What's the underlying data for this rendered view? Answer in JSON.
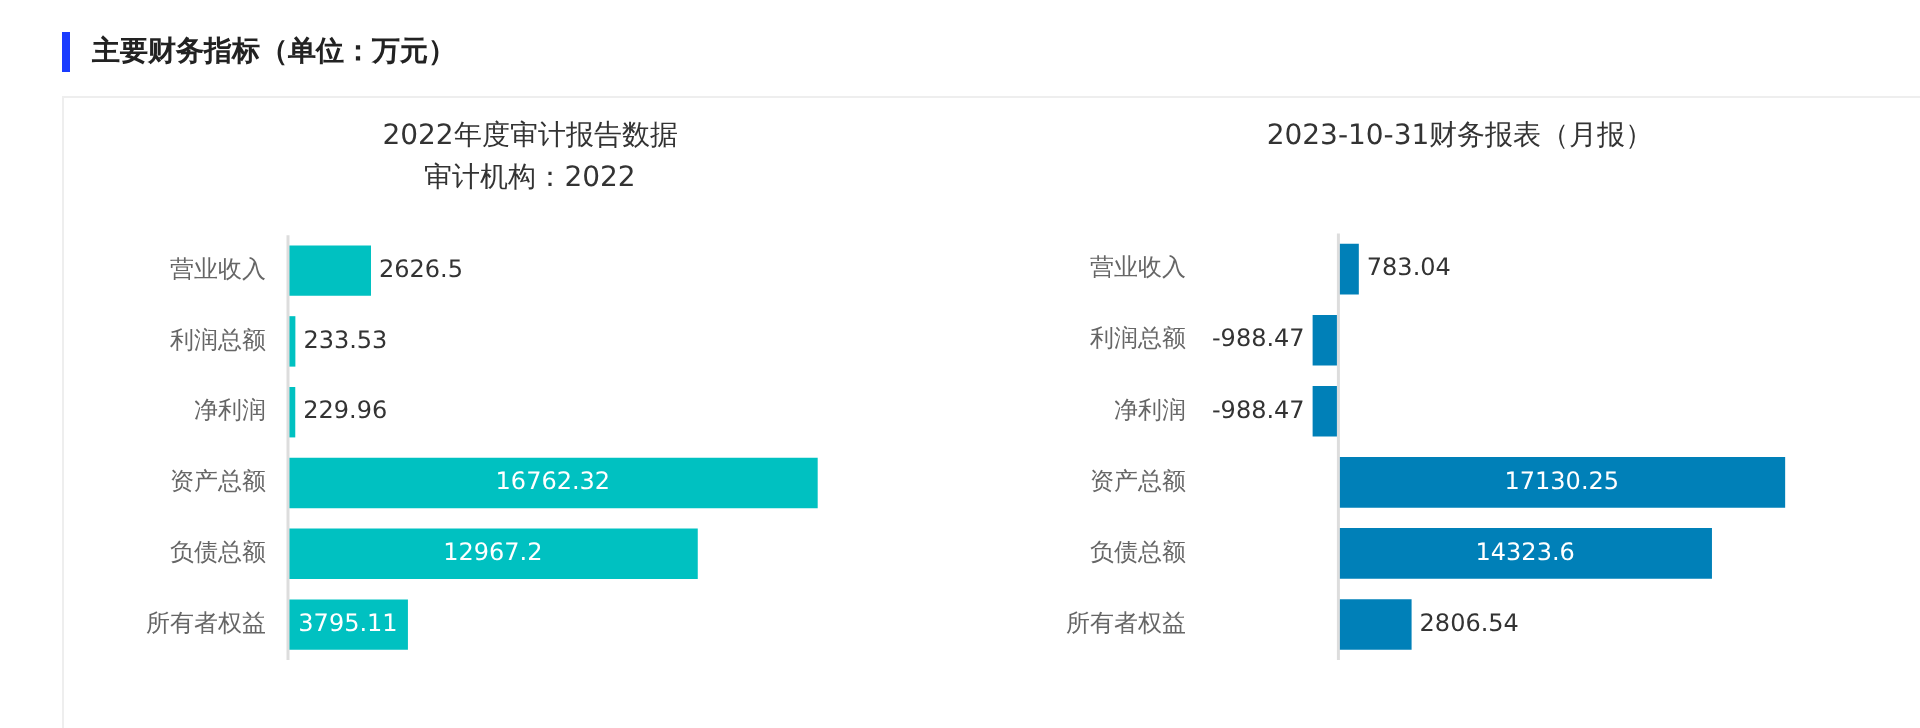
{
  "chart_data": [
    {
      "type": "bar",
      "orientation": "horizontal",
      "title": "2022年度审计报告数据",
      "subtitle": "审计机构：2022",
      "annotations": [
        "主要财务指标（单位：万元）"
      ],
      "categories": [
        "营业收入",
        "利润总额",
        "净利润",
        "资产总额",
        "负债总额",
        "所有者权益"
      ],
      "values": [
        2626.5,
        233.53,
        229.96,
        16762.32,
        12967.2,
        3795.11
      ],
      "color": "#00c1c1",
      "data_labels": true,
      "legend": false,
      "tick_labels": "y"
    },
    {
      "type": "bar",
      "orientation": "horizontal",
      "title": "2023-10-31财务报表（月报）",
      "categories": [
        "营业收入",
        "利润总额",
        "净利润",
        "资产总额",
        "负债总额",
        "所有者权益"
      ],
      "values": [
        783.04,
        -988.47,
        -988.47,
        17130.25,
        14323.6,
        2806.54
      ],
      "color": "#0080b8",
      "data_labels": true,
      "legend": false,
      "tick_labels": "y"
    }
  ]
}
